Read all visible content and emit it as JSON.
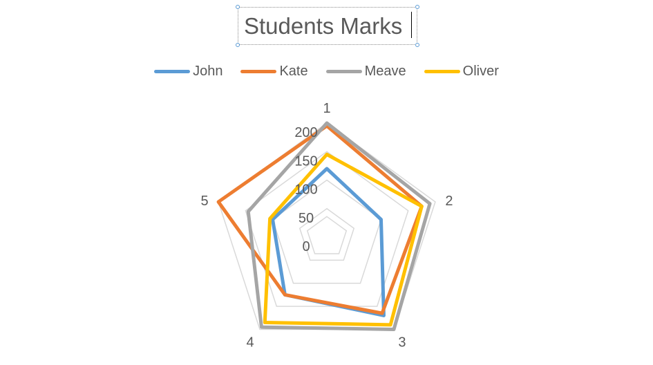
{
  "chart_data": {
    "type": "radar",
    "title": "Students Marks",
    "categories": [
      "1",
      "2",
      "3",
      "4",
      "5"
    ],
    "rlim": [
      0,
      200
    ],
    "r_ticks": [
      "0",
      "50",
      "100",
      "150",
      "200"
    ],
    "grid": true,
    "legend_position": "top",
    "series": [
      {
        "name": "John",
        "color": "#5b9bd5",
        "values": [
          120,
          100,
          170,
          125,
          100
        ]
      },
      {
        "name": "Kate",
        "color": "#ed7d31",
        "values": [
          195,
          175,
          165,
          125,
          200
        ]
      },
      {
        "name": "Meave",
        "color": "#a5a5a5",
        "values": [
          200,
          190,
          200,
          195,
          145
        ]
      },
      {
        "name": "Oliver",
        "color": "#ffc000",
        "values": [
          145,
          175,
          190,
          185,
          105
        ]
      }
    ]
  }
}
